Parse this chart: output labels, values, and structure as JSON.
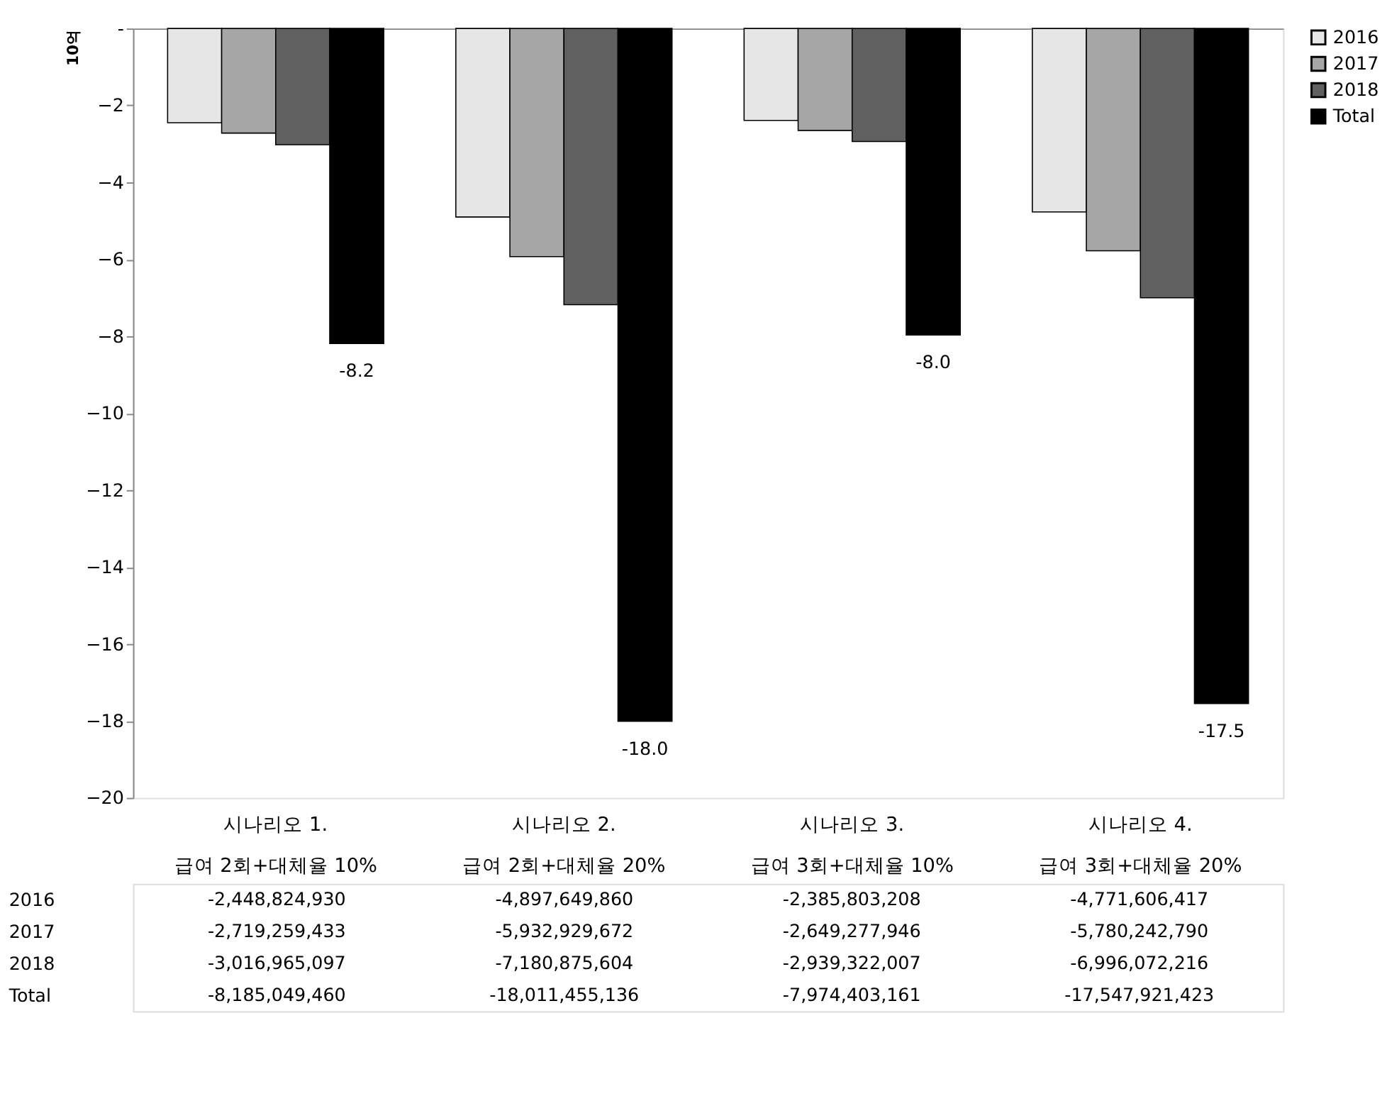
{
  "chart_data": {
    "type": "bar",
    "ylabel": "10억",
    "categories": [
      "시나리오 1.\n급여 2회+대체율 10%",
      "시나리오 2.\n급여 2회+대체율 20%",
      "시나리오 3.\n급여 3회+대체율 10%",
      "시나리오 4.\n급여 3회+대체율 20%"
    ],
    "series": [
      {
        "name": "2016",
        "color": "#e6e6e6",
        "values": [
          -2.45,
          -4.9,
          -2.39,
          -4.77
        ]
      },
      {
        "name": "2017",
        "color": "#a6a6a6",
        "values": [
          -2.72,
          -5.93,
          -2.65,
          -5.78
        ]
      },
      {
        "name": "2018",
        "color": "#606060",
        "values": [
          -3.02,
          -7.18,
          -2.94,
          -7.0
        ]
      },
      {
        "name": "Total",
        "color": "#000000",
        "values": [
          -8.19,
          -18.01,
          -7.97,
          -17.55
        ],
        "value_labels": [
          "-8.2",
          "-18.0",
          "-8.0",
          "-17.5"
        ]
      }
    ],
    "annotations": [
      "-2,448,824,930",
      "-4,897,649,860",
      "-2,385,803,208",
      "-4,771,606,417",
      "-2,719,259,433",
      "-5,932,929,672",
      "-2,649,277,946",
      "-5,780,242,790",
      "-3,016,965,097",
      "-7,180,875,604",
      "-2,939,322,007",
      "-6,996,072,216",
      "-8,185,049,460",
      "-18,011,455,136",
      "-7,974,403,161",
      "-17,547,921,423"
    ],
    "ylim": [
      -20,
      0
    ],
    "yticks": [
      {
        "value": 0,
        "label": "-"
      },
      -2,
      -4,
      -6,
      -8,
      -10,
      -12,
      -14,
      -16,
      -18,
      -20
    ],
    "grid": false,
    "legend": "right"
  }
}
